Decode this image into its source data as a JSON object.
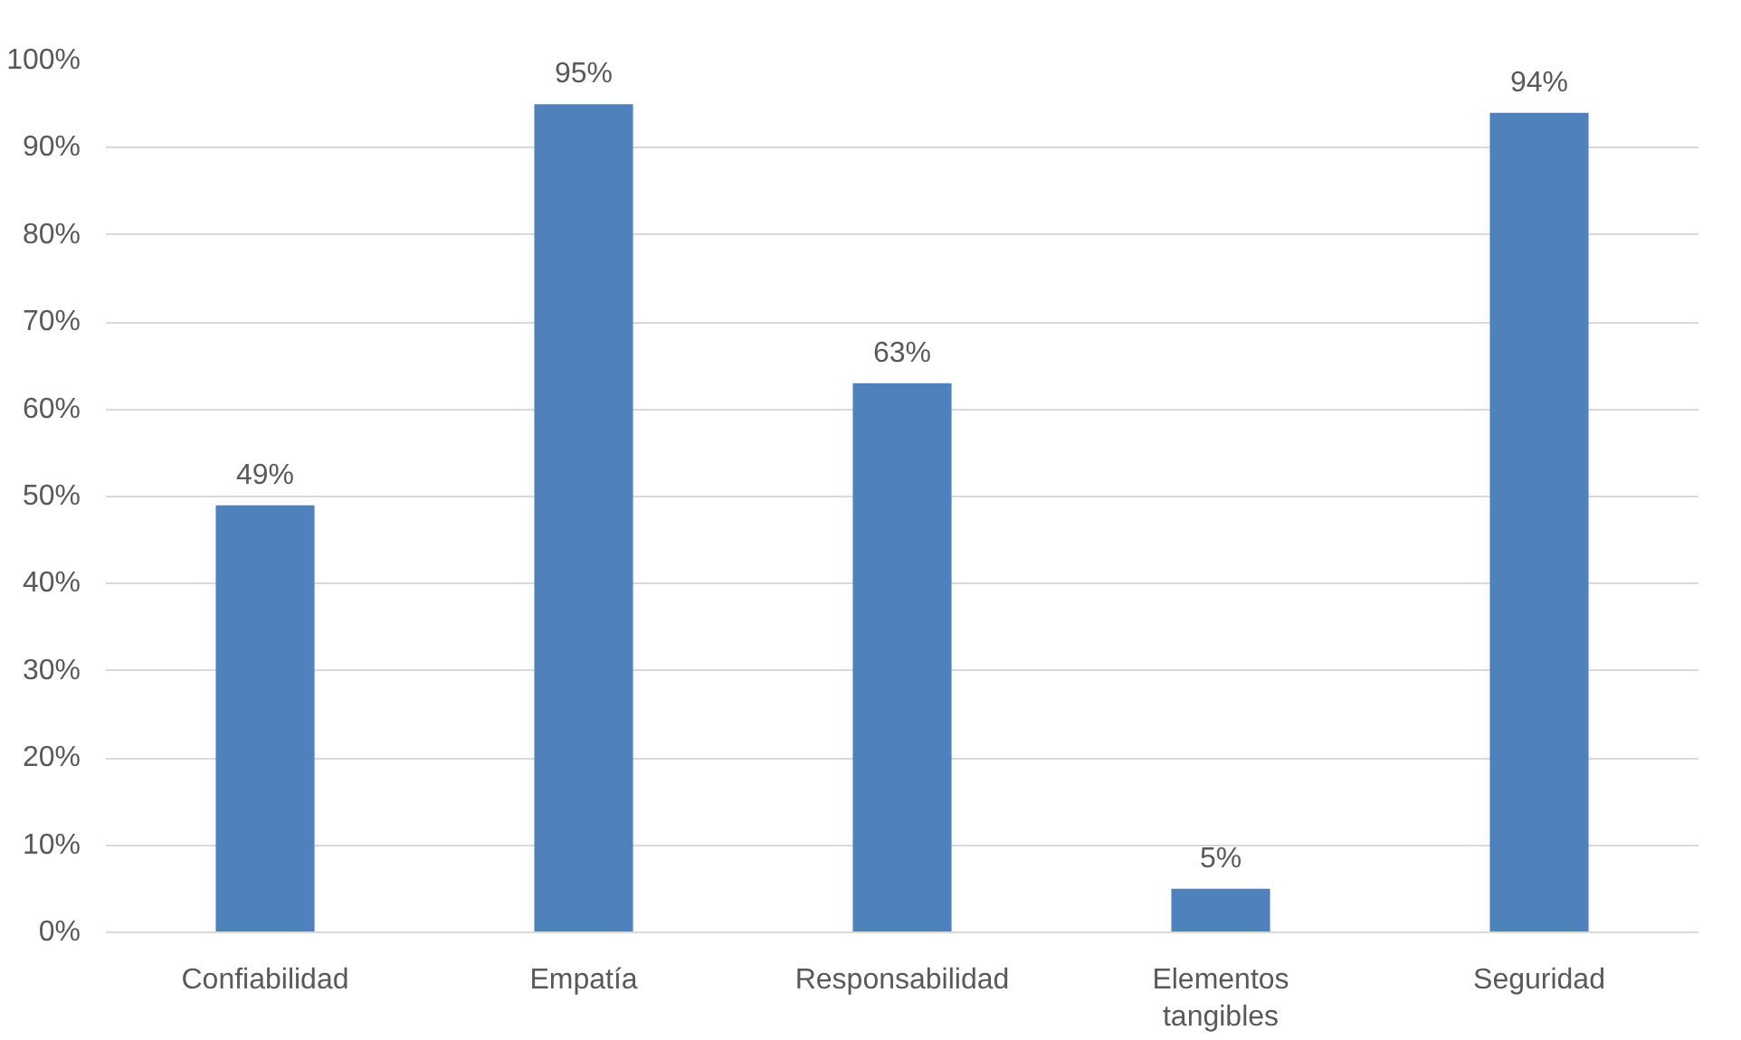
{
  "chart_data": {
    "type": "bar",
    "categories": [
      "Confiabilidad",
      "Empatía",
      "Responsabilidad",
      "Elementos tangibles",
      "Seguridad"
    ],
    "values": [
      49,
      95,
      63,
      5,
      94
    ],
    "value_labels": [
      "49%",
      "95%",
      "63%",
      "5%",
      "94%"
    ],
    "color": "#4f81bd",
    "ylim": [
      0,
      100
    ],
    "yticks": [
      {
        "value": 0,
        "label": "0%"
      },
      {
        "value": 10,
        "label": "10%"
      },
      {
        "value": 20,
        "label": "20%"
      },
      {
        "value": 30,
        "label": "30%"
      },
      {
        "value": 40,
        "label": "40%"
      },
      {
        "value": 50,
        "label": "50%"
      },
      {
        "value": 60,
        "label": "60%"
      },
      {
        "value": 70,
        "label": "70%"
      },
      {
        "value": 80,
        "label": "80%"
      },
      {
        "value": 90,
        "label": "90%"
      },
      {
        "value": 100,
        "label": "100%"
      }
    ],
    "grid": "y"
  }
}
